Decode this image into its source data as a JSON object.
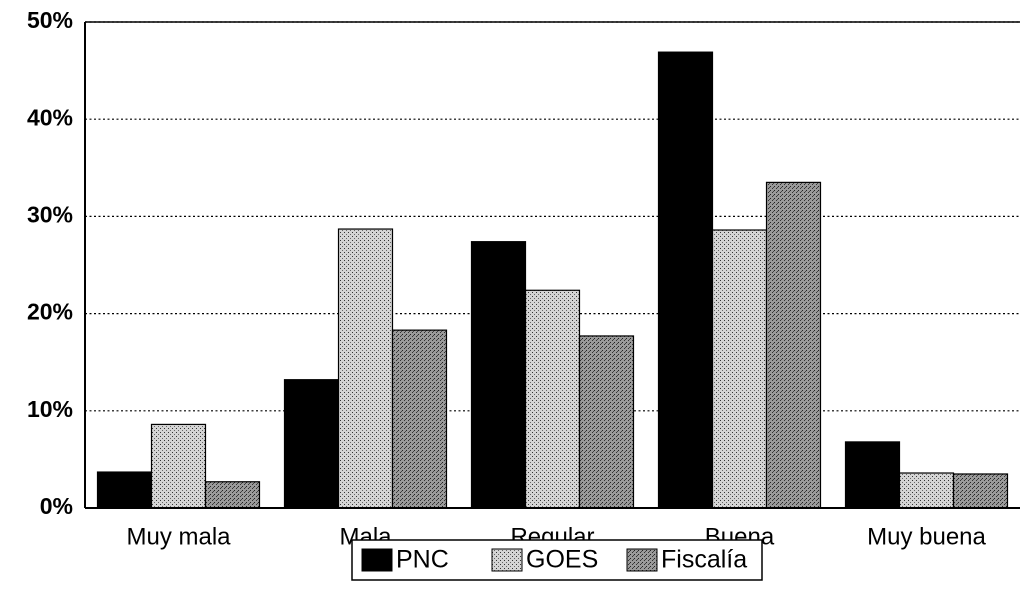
{
  "chart_data": {
    "type": "bar",
    "categories": [
      "Muy mala",
      "Mala",
      "Regular",
      "Buena",
      "Muy buena"
    ],
    "series": [
      {
        "name": "PNC",
        "color": "#000000",
        "values": [
          3.7,
          13.2,
          27.4,
          46.9,
          6.8
        ]
      },
      {
        "name": "GOES",
        "color": "#d4d4d4",
        "values": [
          8.6,
          28.7,
          22.4,
          28.6,
          3.6
        ]
      },
      {
        "name": "Fiscalía",
        "color": "#9a9a9a",
        "values": [
          2.7,
          18.3,
          17.7,
          33.5,
          3.5
        ]
      }
    ],
    "ylim": [
      0,
      50
    ],
    "yticks": [
      {
        "value": 0,
        "label": "0%"
      },
      {
        "value": 10,
        "label": "10%"
      },
      {
        "value": 20,
        "label": "20%"
      },
      {
        "value": 30,
        "label": "30%"
      },
      {
        "value": 40,
        "label": "40%"
      },
      {
        "value": 50,
        "label": "50%"
      }
    ],
    "grid": true,
    "legend": "bottom"
  }
}
